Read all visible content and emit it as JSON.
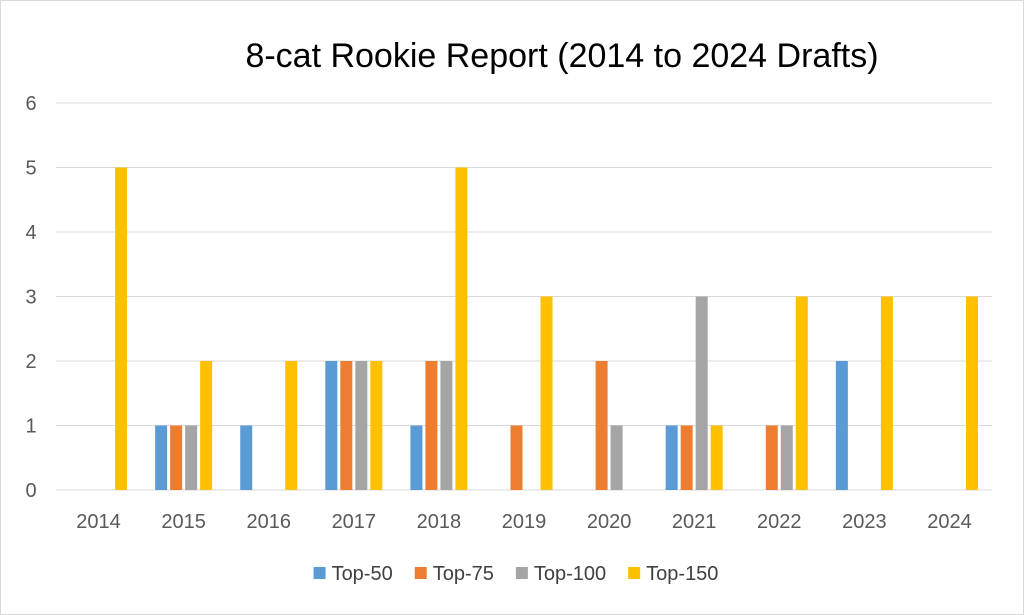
{
  "chart_data": {
    "type": "bar",
    "title": "8-cat Rookie Report (2014 to 2024 Drafts)",
    "categories": [
      "2014",
      "2015",
      "2016",
      "2017",
      "2018",
      "2019",
      "2020",
      "2021",
      "2022",
      "2023",
      "2024"
    ],
    "y_ticks": [
      "0",
      "1",
      "2",
      "3",
      "4",
      "5",
      "6"
    ],
    "ylim": [
      0,
      6
    ],
    "grid": true,
    "legend_position": "bottom",
    "series": [
      {
        "name": "Top-50",
        "color": "#5B9BD5",
        "values": [
          0,
          1,
          1,
          2,
          1,
          0,
          0,
          1,
          0,
          2,
          0
        ]
      },
      {
        "name": "Top-75",
        "color": "#ED7D31",
        "values": [
          0,
          1,
          0,
          2,
          2,
          1,
          2,
          1,
          1,
          0,
          0
        ]
      },
      {
        "name": "Top-100",
        "color": "#A5A5A5",
        "values": [
          0,
          1,
          0,
          2,
          2,
          0,
          1,
          3,
          1,
          0,
          0
        ]
      },
      {
        "name": "Top-150",
        "color": "#FFC000",
        "values": [
          5,
          2,
          2,
          2,
          5,
          3,
          0,
          1,
          3,
          3,
          3
        ]
      }
    ]
  }
}
